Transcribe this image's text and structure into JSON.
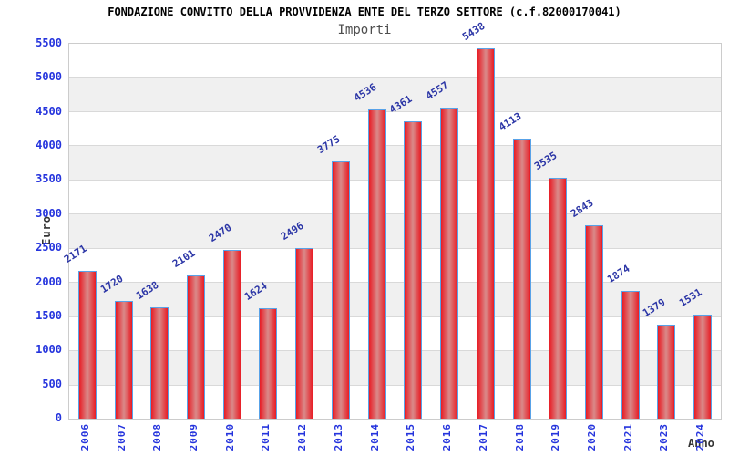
{
  "chart_data": {
    "type": "bar",
    "title": "FONDAZIONE CONVITTO DELLA PROVVIDENZA ENTE DEL TERZO SETTORE (c.f.82000170041)",
    "subtitle": "Importi",
    "xlabel": "Anno",
    "ylabel": "Euro",
    "categories": [
      "2006",
      "2007",
      "2008",
      "2009",
      "2010",
      "2011",
      "2012",
      "2013",
      "2014",
      "2015",
      "2016",
      "2017",
      "2018",
      "2019",
      "2020",
      "2021",
      "2023",
      "2024"
    ],
    "values": [
      2171,
      1720,
      1638,
      2101,
      2470,
      1624,
      2496,
      3775,
      4536,
      4361,
      4557,
      5438,
      4113,
      3535,
      2843,
      1874,
      1379,
      1531
    ],
    "ylim": [
      0,
      5500
    ],
    "ytick_step": 500,
    "grid": true,
    "legend_position": "none",
    "colors": {
      "bar_edge": "#58a2e8",
      "bar_fill_outer": "#e81c24",
      "bar_fill_center": "#d98a8a",
      "axis_tick_label": "#2534dd",
      "value_label": "#2b35a6",
      "band_gray": "#f0f0f0",
      "grid_line": "#d9d9d9",
      "plot_border": "#cccccc",
      "title": "#000000",
      "subtitle": "#4d4d4d",
      "axis_title": "#333333"
    }
  }
}
